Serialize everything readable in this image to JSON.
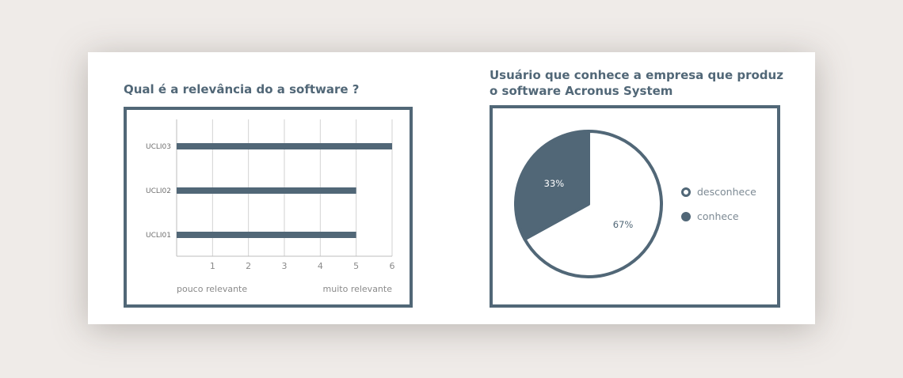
{
  "chart_data": [
    {
      "type": "bar",
      "orientation": "horizontal",
      "title": "Qual é a relevância do a software ?",
      "categories": [
        "UCLI03",
        "UCLI02",
        "UCLI01"
      ],
      "values": [
        6,
        5,
        5
      ],
      "xlim": [
        0,
        6
      ],
      "x_ticks": [
        1,
        2,
        3,
        4,
        5,
        6
      ],
      "grid": true,
      "scale_low_label": "pouco relevante",
      "scale_high_label": "muito relevante",
      "bar_color": "#516777"
    },
    {
      "type": "pie",
      "title": "Usuário que conhece a empresa que produz o software Acronus System",
      "labels": [
        "desconhece",
        "conhece"
      ],
      "values": [
        67,
        33
      ],
      "value_labels": [
        "67%",
        "33%"
      ],
      "colors": [
        "#ffffff",
        "#516777"
      ],
      "legend": "right"
    }
  ]
}
